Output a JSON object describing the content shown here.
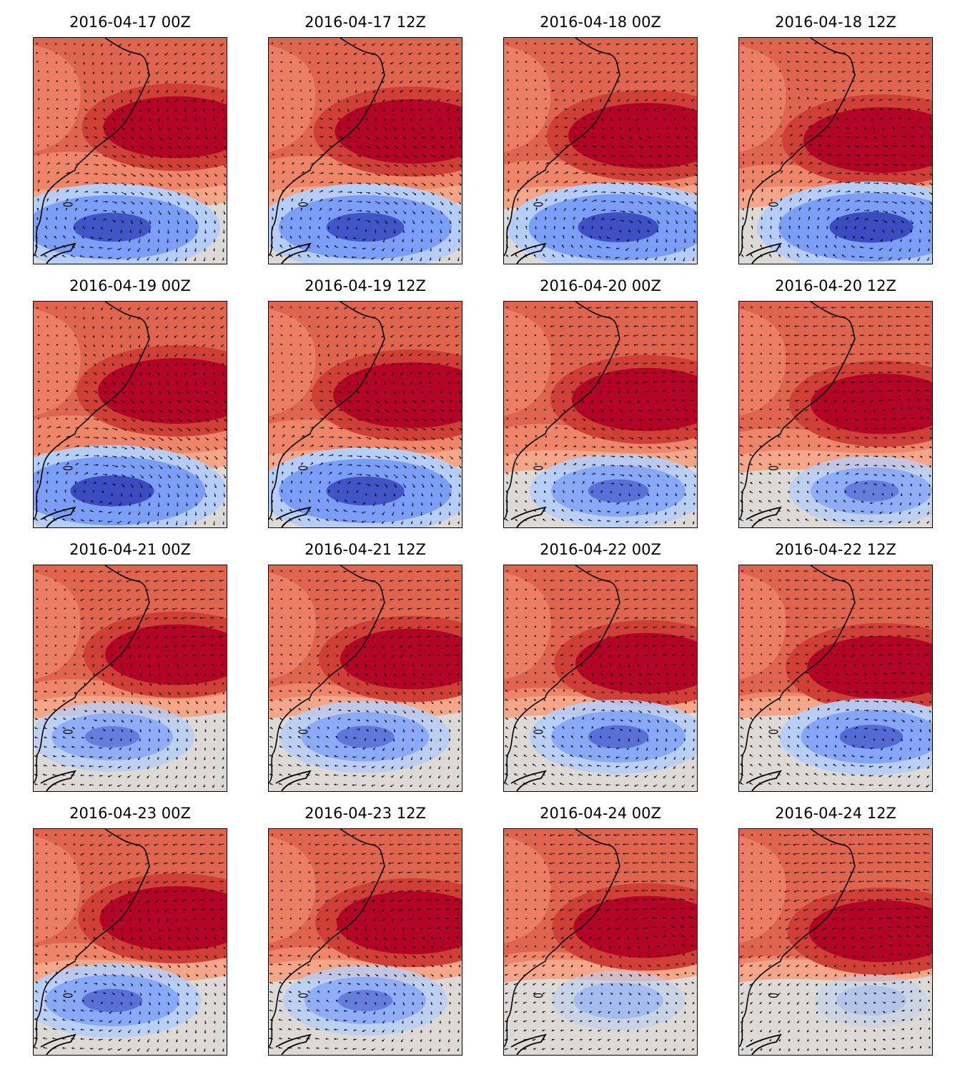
{
  "figure": {
    "panels": [
      {
        "title": "2016-04-17 00Z",
        "high_strength": 0.85,
        "low_strength": 0.9
      },
      {
        "title": "2016-04-17 12Z",
        "high_strength": 0.95,
        "low_strength": 0.9
      },
      {
        "title": "2016-04-18 00Z",
        "high_strength": 1.0,
        "low_strength": 0.95
      },
      {
        "title": "2016-04-18 12Z",
        "high_strength": 1.0,
        "low_strength": 1.0
      },
      {
        "title": "2016-04-19 00Z",
        "high_strength": 1.0,
        "low_strength": 1.0
      },
      {
        "title": "2016-04-19 12Z",
        "high_strength": 1.0,
        "low_strength": 0.9
      },
      {
        "title": "2016-04-20 00Z",
        "high_strength": 0.9,
        "low_strength": 0.6
      },
      {
        "title": "2016-04-20 12Z",
        "high_strength": 0.8,
        "low_strength": 0.5
      },
      {
        "title": "2016-04-21 00Z",
        "high_strength": 0.8,
        "low_strength": 0.5
      },
      {
        "title": "2016-04-21 12Z",
        "high_strength": 0.8,
        "low_strength": 0.55
      },
      {
        "title": "2016-04-22 00Z",
        "high_strength": 0.8,
        "low_strength": 0.6
      },
      {
        "title": "2016-04-22 12Z",
        "high_strength": 0.9,
        "low_strength": 0.65
      },
      {
        "title": "2016-04-23 00Z",
        "high_strength": 0.95,
        "low_strength": 0.6
      },
      {
        "title": "2016-04-23 12Z",
        "high_strength": 0.9,
        "low_strength": 0.5
      },
      {
        "title": "2016-04-24 00Z",
        "high_strength": 0.85,
        "low_strength": 0.25
      },
      {
        "title": "2016-04-24 12Z",
        "high_strength": 0.85,
        "low_strength": 0.1
      }
    ],
    "colormap": "coolwarm",
    "colors": {
      "deep_red": "#b40426",
      "red": "#cf3f36",
      "orange_red": "#e0654f",
      "salmon": "#ee8468",
      "light_salmon": "#f5a689",
      "neutral": "#ddd9d6",
      "light_blue": "#b6cdf8",
      "blue": "#7b9ff9",
      "deep_blue": "#3b4cc0",
      "coastline": "#000000",
      "arrows": "#000000"
    },
    "layers": [
      "filled-contours",
      "wind-vectors",
      "coastline"
    ]
  }
}
